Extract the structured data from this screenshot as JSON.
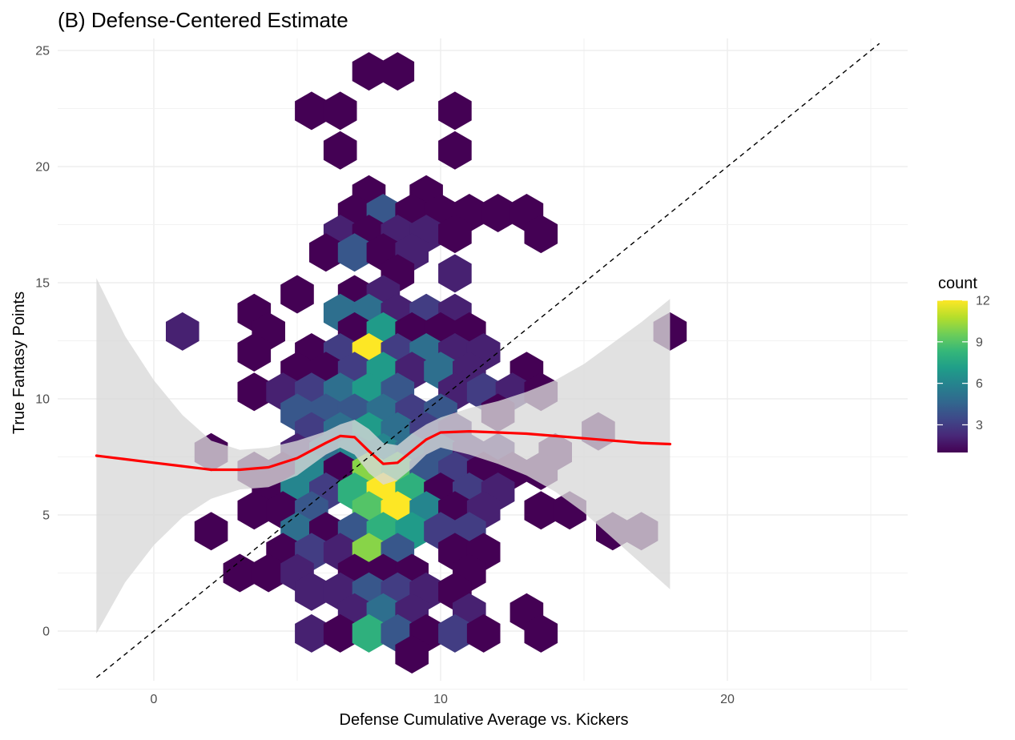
{
  "chart_data": {
    "type": "hexbin",
    "title": "(B) Defense-Centered Estimate",
    "xlabel": "Defense Cumulative Average vs. Kickers",
    "ylabel": "True Fantasy Points",
    "xlim": [
      -3,
      25.5
    ],
    "ylim": [
      -1.5,
      25.3
    ],
    "x_ticks": [
      0,
      10,
      20
    ],
    "x_tick_labels": [
      "0",
      "10",
      "20"
    ],
    "y_ticks": [
      0,
      5,
      10,
      15,
      20,
      25
    ],
    "y_tick_labels": [
      "0",
      "5",
      "10",
      "15",
      "20",
      "25"
    ],
    "grid": true,
    "legend": {
      "title": "count",
      "placement": "right",
      "min": 1,
      "max": 12,
      "ticks": [
        3,
        6,
        9,
        12
      ],
      "tick_labels": [
        "3",
        "6",
        "9",
        "12"
      ],
      "palette": [
        "#440154",
        "#482878",
        "#3e4989",
        "#31688e",
        "#26828e",
        "#1f9e89",
        "#35b779",
        "#6ece58",
        "#b5de2b",
        "#fde725"
      ]
    },
    "hex_radius": 0.58,
    "bins": [
      {
        "x": 7.5,
        "y": 24.1,
        "count": 1
      },
      {
        "x": 8.5,
        "y": 24.1,
        "count": 1
      },
      {
        "x": 5.5,
        "y": 22.4,
        "count": 1
      },
      {
        "x": 6.5,
        "y": 22.4,
        "count": 1
      },
      {
        "x": 10.5,
        "y": 22.4,
        "count": 1
      },
      {
        "x": 6.5,
        "y": 20.7,
        "count": 1
      },
      {
        "x": 10.5,
        "y": 20.7,
        "count": 1
      },
      {
        "x": 7.5,
        "y": 18.8,
        "count": 1
      },
      {
        "x": 9.5,
        "y": 18.8,
        "count": 1
      },
      {
        "x": 7.0,
        "y": 18.0,
        "count": 1
      },
      {
        "x": 8.0,
        "y": 18.0,
        "count": 4
      },
      {
        "x": 9.0,
        "y": 18.0,
        "count": 1
      },
      {
        "x": 10.0,
        "y": 18.0,
        "count": 1
      },
      {
        "x": 11.0,
        "y": 18.0,
        "count": 1
      },
      {
        "x": 12.0,
        "y": 18.0,
        "count": 1
      },
      {
        "x": 13.0,
        "y": 18.0,
        "count": 1
      },
      {
        "x": 6.5,
        "y": 17.1,
        "count": 2
      },
      {
        "x": 7.5,
        "y": 17.1,
        "count": 1
      },
      {
        "x": 8.5,
        "y": 17.1,
        "count": 2
      },
      {
        "x": 9.5,
        "y": 17.1,
        "count": 2
      },
      {
        "x": 10.5,
        "y": 17.1,
        "count": 1
      },
      {
        "x": 13.5,
        "y": 17.1,
        "count": 1
      },
      {
        "x": 6.0,
        "y": 16.3,
        "count": 1
      },
      {
        "x": 7.0,
        "y": 16.3,
        "count": 4
      },
      {
        "x": 8.0,
        "y": 16.3,
        "count": 1
      },
      {
        "x": 9.0,
        "y": 16.3,
        "count": 2
      },
      {
        "x": 8.5,
        "y": 15.4,
        "count": 1
      },
      {
        "x": 10.5,
        "y": 15.4,
        "count": 2
      },
      {
        "x": 5.0,
        "y": 14.5,
        "count": 1
      },
      {
        "x": 7.0,
        "y": 14.5,
        "count": 1
      },
      {
        "x": 8.0,
        "y": 14.5,
        "count": 2
      },
      {
        "x": 3.5,
        "y": 13.7,
        "count": 1
      },
      {
        "x": 6.5,
        "y": 13.7,
        "count": 5
      },
      {
        "x": 7.5,
        "y": 13.7,
        "count": 5
      },
      {
        "x": 8.5,
        "y": 13.7,
        "count": 2
      },
      {
        "x": 9.5,
        "y": 13.7,
        "count": 3
      },
      {
        "x": 10.5,
        "y": 13.7,
        "count": 2
      },
      {
        "x": 1.0,
        "y": 12.9,
        "count": 2
      },
      {
        "x": 4.0,
        "y": 12.9,
        "count": 1
      },
      {
        "x": 7.0,
        "y": 12.9,
        "count": 1
      },
      {
        "x": 8.0,
        "y": 12.9,
        "count": 7
      },
      {
        "x": 9.0,
        "y": 12.9,
        "count": 1
      },
      {
        "x": 10.0,
        "y": 12.9,
        "count": 1
      },
      {
        "x": 11.0,
        "y": 12.9,
        "count": 1
      },
      {
        "x": 18.0,
        "y": 12.9,
        "count": 1
      },
      {
        "x": 3.5,
        "y": 12.0,
        "count": 1
      },
      {
        "x": 5.5,
        "y": 12.0,
        "count": 1
      },
      {
        "x": 6.5,
        "y": 12.0,
        "count": 3
      },
      {
        "x": 7.5,
        "y": 12.0,
        "count": 12
      },
      {
        "x": 8.5,
        "y": 12.0,
        "count": 3
      },
      {
        "x": 9.5,
        "y": 12.0,
        "count": 5
      },
      {
        "x": 10.5,
        "y": 12.0,
        "count": 2
      },
      {
        "x": 11.5,
        "y": 12.0,
        "count": 2
      },
      {
        "x": 5.0,
        "y": 11.2,
        "count": 1
      },
      {
        "x": 6.0,
        "y": 11.2,
        "count": 1
      },
      {
        "x": 7.0,
        "y": 11.2,
        "count": 3
      },
      {
        "x": 8.0,
        "y": 11.2,
        "count": 7
      },
      {
        "x": 9.0,
        "y": 11.2,
        "count": 2
      },
      {
        "x": 10.0,
        "y": 11.2,
        "count": 5
      },
      {
        "x": 11.0,
        "y": 11.2,
        "count": 2
      },
      {
        "x": 13.0,
        "y": 11.2,
        "count": 1
      },
      {
        "x": 3.5,
        "y": 10.3,
        "count": 1
      },
      {
        "x": 4.5,
        "y": 10.3,
        "count": 2
      },
      {
        "x": 5.5,
        "y": 10.3,
        "count": 3
      },
      {
        "x": 6.5,
        "y": 10.3,
        "count": 5
      },
      {
        "x": 7.5,
        "y": 10.3,
        "count": 7
      },
      {
        "x": 8.5,
        "y": 10.3,
        "count": 4
      },
      {
        "x": 10.5,
        "y": 10.3,
        "count": 2
      },
      {
        "x": 11.5,
        "y": 10.3,
        "count": 3
      },
      {
        "x": 12.5,
        "y": 10.3,
        "count": 2
      },
      {
        "x": 13.5,
        "y": 10.3,
        "count": 1
      },
      {
        "x": 5.0,
        "y": 9.4,
        "count": 4
      },
      {
        "x": 6.0,
        "y": 9.4,
        "count": 4
      },
      {
        "x": 7.0,
        "y": 9.4,
        "count": 4
      },
      {
        "x": 8.0,
        "y": 9.4,
        "count": 5
      },
      {
        "x": 9.0,
        "y": 9.4,
        "count": 3
      },
      {
        "x": 10.0,
        "y": 9.4,
        "count": 4
      },
      {
        "x": 12.0,
        "y": 9.4,
        "count": 1
      },
      {
        "x": 5.5,
        "y": 8.6,
        "count": 3
      },
      {
        "x": 6.5,
        "y": 8.6,
        "count": 5
      },
      {
        "x": 7.5,
        "y": 8.6,
        "count": 7
      },
      {
        "x": 8.5,
        "y": 8.6,
        "count": 5
      },
      {
        "x": 9.5,
        "y": 8.6,
        "count": 3
      },
      {
        "x": 10.5,
        "y": 8.6,
        "count": 2
      },
      {
        "x": 15.5,
        "y": 8.6,
        "count": 1
      },
      {
        "x": 2.0,
        "y": 7.7,
        "count": 1
      },
      {
        "x": 5.0,
        "y": 7.7,
        "count": 2
      },
      {
        "x": 6.0,
        "y": 7.7,
        "count": 5
      },
      {
        "x": 7.0,
        "y": 7.7,
        "count": 6
      },
      {
        "x": 8.0,
        "y": 7.7,
        "count": 6
      },
      {
        "x": 9.0,
        "y": 7.7,
        "count": 5
      },
      {
        "x": 10.0,
        "y": 7.7,
        "count": 4
      },
      {
        "x": 11.0,
        "y": 7.7,
        "count": 2
      },
      {
        "x": 12.0,
        "y": 7.7,
        "count": 2
      },
      {
        "x": 14.0,
        "y": 7.7,
        "count": 1
      },
      {
        "x": 3.5,
        "y": 6.9,
        "count": 1
      },
      {
        "x": 4.5,
        "y": 6.9,
        "count": 1
      },
      {
        "x": 5.5,
        "y": 6.9,
        "count": 6
      },
      {
        "x": 6.5,
        "y": 6.9,
        "count": 1
      },
      {
        "x": 7.5,
        "y": 6.9,
        "count": 10
      },
      {
        "x": 8.5,
        "y": 6.9,
        "count": 9
      },
      {
        "x": 9.5,
        "y": 6.9,
        "count": 4
      },
      {
        "x": 10.5,
        "y": 6.9,
        "count": 3
      },
      {
        "x": 11.5,
        "y": 6.9,
        "count": 1
      },
      {
        "x": 12.5,
        "y": 6.9,
        "count": 1
      },
      {
        "x": 13.5,
        "y": 6.9,
        "count": 1
      },
      {
        "x": 4.0,
        "y": 6.0,
        "count": 1
      },
      {
        "x": 5.0,
        "y": 6.0,
        "count": 6
      },
      {
        "x": 6.0,
        "y": 6.0,
        "count": 3
      },
      {
        "x": 7.0,
        "y": 6.0,
        "count": 8
      },
      {
        "x": 8.0,
        "y": 6.0,
        "count": 12
      },
      {
        "x": 9.0,
        "y": 6.0,
        "count": 8
      },
      {
        "x": 10.0,
        "y": 6.0,
        "count": 1
      },
      {
        "x": 11.0,
        "y": 6.0,
        "count": 3
      },
      {
        "x": 12.0,
        "y": 6.0,
        "count": 2
      },
      {
        "x": 3.5,
        "y": 5.2,
        "count": 1
      },
      {
        "x": 4.5,
        "y": 5.2,
        "count": 1
      },
      {
        "x": 5.5,
        "y": 5.2,
        "count": 4
      },
      {
        "x": 7.5,
        "y": 5.2,
        "count": 9
      },
      {
        "x": 8.5,
        "y": 5.2,
        "count": 12
      },
      {
        "x": 9.5,
        "y": 5.2,
        "count": 6
      },
      {
        "x": 10.5,
        "y": 5.2,
        "count": 1
      },
      {
        "x": 11.5,
        "y": 5.2,
        "count": 2
      },
      {
        "x": 13.5,
        "y": 5.2,
        "count": 1
      },
      {
        "x": 14.5,
        "y": 5.2,
        "count": 1
      },
      {
        "x": 2.0,
        "y": 4.3,
        "count": 1
      },
      {
        "x": 5.0,
        "y": 4.3,
        "count": 5
      },
      {
        "x": 6.0,
        "y": 4.3,
        "count": 1
      },
      {
        "x": 7.0,
        "y": 4.3,
        "count": 4
      },
      {
        "x": 8.0,
        "y": 4.3,
        "count": 8
      },
      {
        "x": 9.0,
        "y": 4.3,
        "count": 7
      },
      {
        "x": 10.0,
        "y": 4.3,
        "count": 3
      },
      {
        "x": 11.0,
        "y": 4.3,
        "count": 3
      },
      {
        "x": 16.0,
        "y": 4.3,
        "count": 1
      },
      {
        "x": 17.0,
        "y": 4.3,
        "count": 1
      },
      {
        "x": 4.5,
        "y": 3.4,
        "count": 1
      },
      {
        "x": 5.5,
        "y": 3.4,
        "count": 3
      },
      {
        "x": 6.5,
        "y": 3.4,
        "count": 2
      },
      {
        "x": 7.5,
        "y": 3.4,
        "count": 10
      },
      {
        "x": 8.5,
        "y": 3.4,
        "count": 4
      },
      {
        "x": 10.5,
        "y": 3.4,
        "count": 1
      },
      {
        "x": 11.5,
        "y": 3.4,
        "count": 1
      },
      {
        "x": 3.0,
        "y": 2.5,
        "count": 1
      },
      {
        "x": 4.0,
        "y": 2.5,
        "count": 1
      },
      {
        "x": 5.0,
        "y": 2.5,
        "count": 2
      },
      {
        "x": 7.0,
        "y": 2.5,
        "count": 1
      },
      {
        "x": 8.0,
        "y": 2.5,
        "count": 1
      },
      {
        "x": 9.0,
        "y": 2.5,
        "count": 1
      },
      {
        "x": 11.0,
        "y": 2.5,
        "count": 1
      },
      {
        "x": 5.5,
        "y": 1.7,
        "count": 2
      },
      {
        "x": 6.5,
        "y": 1.7,
        "count": 2
      },
      {
        "x": 7.5,
        "y": 1.7,
        "count": 4
      },
      {
        "x": 8.5,
        "y": 1.7,
        "count": 3
      },
      {
        "x": 9.5,
        "y": 1.7,
        "count": 2
      },
      {
        "x": 10.5,
        "y": 1.7,
        "count": 1
      },
      {
        "x": 7.0,
        "y": 0.8,
        "count": 2
      },
      {
        "x": 8.0,
        "y": 0.8,
        "count": 5
      },
      {
        "x": 9.0,
        "y": 0.8,
        "count": 2
      },
      {
        "x": 11.0,
        "y": 0.8,
        "count": 2
      },
      {
        "x": 13.0,
        "y": 0.8,
        "count": 1
      },
      {
        "x": 5.5,
        "y": -0.1,
        "count": 2
      },
      {
        "x": 6.5,
        "y": -0.1,
        "count": 1
      },
      {
        "x": 7.5,
        "y": -0.1,
        "count": 8
      },
      {
        "x": 8.5,
        "y": -0.1,
        "count": 4
      },
      {
        "x": 9.5,
        "y": -0.1,
        "count": 1
      },
      {
        "x": 10.5,
        "y": -0.1,
        "count": 3
      },
      {
        "x": 11.5,
        "y": -0.1,
        "count": 1
      },
      {
        "x": 13.5,
        "y": -0.1,
        "count": 1
      },
      {
        "x": 9.0,
        "y": -1.0,
        "count": 1
      }
    ],
    "smooth_line": {
      "color": "#ff0000",
      "x": [
        -2,
        -1,
        0,
        1,
        2,
        3,
        4,
        5,
        6,
        6.5,
        7,
        7.5,
        8,
        8.5,
        9,
        9.5,
        10,
        11,
        12,
        13,
        14,
        15,
        16,
        17,
        18
      ],
      "y": [
        7.55,
        7.4,
        7.25,
        7.1,
        6.95,
        6.95,
        7.05,
        7.45,
        8.1,
        8.4,
        8.35,
        7.75,
        7.2,
        7.25,
        7.75,
        8.25,
        8.55,
        8.6,
        8.55,
        8.5,
        8.4,
        8.3,
        8.2,
        8.1,
        8.05
      ]
    },
    "confidence_band": {
      "color": "#d9d9d9",
      "x": [
        -2,
        -1,
        0,
        1,
        2,
        3,
        4,
        5,
        6,
        6.5,
        7,
        7.5,
        8,
        8.5,
        9,
        9.5,
        10,
        11,
        12,
        13,
        14,
        15,
        16,
        17,
        18
      ],
      "lower": [
        -0.1,
        2.1,
        3.7,
        4.9,
        5.7,
        6.1,
        6.2,
        6.7,
        7.6,
        7.9,
        7.6,
        6.8,
        6.3,
        6.5,
        7.0,
        7.6,
        7.9,
        7.6,
        7.2,
        6.7,
        6.0,
        5.1,
        4.0,
        2.9,
        1.8
      ],
      "upper": [
        15.2,
        12.7,
        10.8,
        9.3,
        8.2,
        7.8,
        7.9,
        8.2,
        8.6,
        8.9,
        9.1,
        8.7,
        8.1,
        8.0,
        8.5,
        8.9,
        9.2,
        9.6,
        9.9,
        10.3,
        10.8,
        11.5,
        12.4,
        13.3,
        14.3
      ]
    },
    "reference_line": {
      "label": "y = x",
      "style": "dashed",
      "color": "#000000",
      "x": [
        -2,
        25.3
      ],
      "y": [
        -2,
        25.3
      ]
    }
  }
}
